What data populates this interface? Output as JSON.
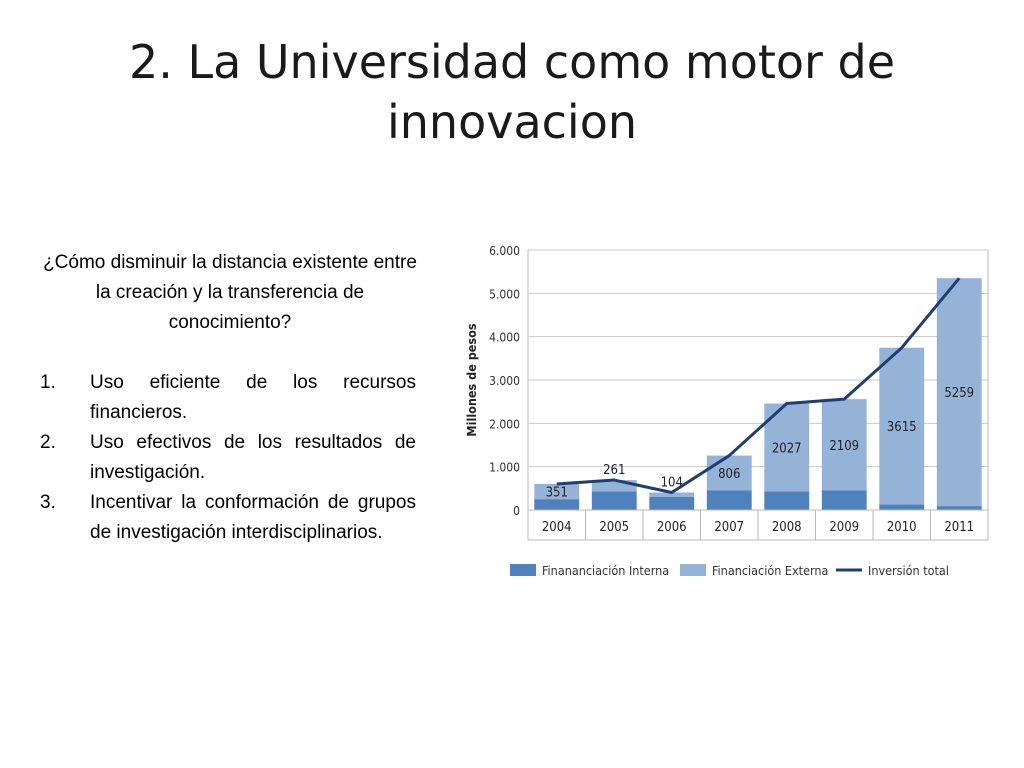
{
  "slide": {
    "title": "2. La Universidad como motor de innovacion",
    "question": "¿Cómo disminuir la distancia existente entre la creación y la transferencia de conocimiento?",
    "points": [
      {
        "number": "1.",
        "text": "Uso eficiente de los recursos financieros."
      },
      {
        "number": "2.",
        "text": "Uso efectivos de los resultados de investigación."
      },
      {
        "number": "3.",
        "text": "Incentivar la conformación de grupos de investigación interdisciplinarios."
      }
    ]
  },
  "chart_data": {
    "type": "bar",
    "stacked": true,
    "categories": [
      "2004",
      "2005",
      "2006",
      "2007",
      "2008",
      "2009",
      "2010",
      "2011"
    ],
    "ylabel": "Millones de pesos",
    "ylim": [
      0,
      6000
    ],
    "yticks": [
      0,
      1000,
      2000,
      3000,
      4000,
      5000,
      6000
    ],
    "ytick_labels": [
      "0",
      "1.000",
      "2.000",
      "3.000",
      "4.000",
      "5.000",
      "6.000"
    ],
    "grid": true,
    "legend_position": "bottom",
    "series": [
      {
        "name": "Finananciación Interna",
        "kind": "bar",
        "color": "#4f81bd",
        "values": [
          250,
          430,
          300,
          450,
          430,
          450,
          130,
          90
        ]
      },
      {
        "name": "Financiación Externa",
        "kind": "bar",
        "color": "#95b3d7",
        "values": [
          351,
          261,
          104,
          806,
          2027,
          2109,
          3615,
          5259
        ],
        "data_labels": [
          "351",
          "261",
          "104",
          "806",
          "2027",
          "2109",
          "3615",
          "5259"
        ]
      },
      {
        "name": "Inversión total",
        "kind": "line",
        "color": "#1f3f73",
        "values": [
          601,
          691,
          404,
          1256,
          2457,
          2559,
          3745,
          5349
        ]
      }
    ]
  }
}
